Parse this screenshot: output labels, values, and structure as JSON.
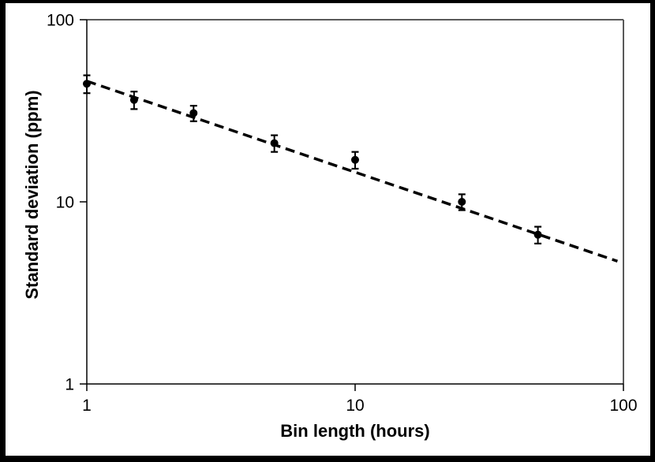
{
  "chart_data": {
    "type": "scatter",
    "title": "",
    "xlabel": "Bin length (hours)",
    "ylabel": "Standard deviation (ppm)",
    "x_scale": "log",
    "y_scale": "log",
    "xlim": [
      1,
      100
    ],
    "ylim": [
      1,
      100
    ],
    "x_ticks": [
      "1",
      "10",
      "100"
    ],
    "y_ticks": [
      "1",
      "10",
      "100"
    ],
    "grid": false,
    "legend": false,
    "points": [
      {
        "x": 1,
        "y": 44.5,
        "err": 5.0
      },
      {
        "x": 1.5,
        "y": 36.3,
        "err": 4.0
      },
      {
        "x": 2.5,
        "y": 30.7,
        "err": 3.0
      },
      {
        "x": 5,
        "y": 21.0,
        "err": 2.2
      },
      {
        "x": 10,
        "y": 17.0,
        "err": 1.8
      },
      {
        "x": 25,
        "y": 10.0,
        "err": 1.0
      },
      {
        "x": 48,
        "y": 6.6,
        "err": 0.7
      }
    ],
    "trendline": {
      "type": "power",
      "coefficient": 46,
      "exponent": -0.5,
      "x_start": 1,
      "x_end": 95,
      "style": "dashed"
    },
    "colors": {
      "marker": "#000000",
      "trendline": "#000000",
      "axis": "#000000",
      "plot_border": "#595959",
      "background": "#ffffff",
      "frame": "#000000",
      "text": "#000000"
    }
  }
}
